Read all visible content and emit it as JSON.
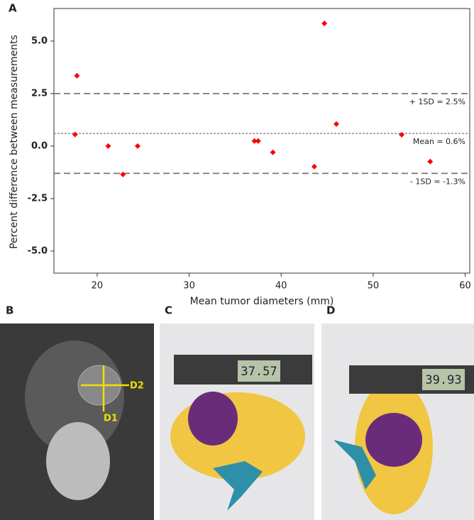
{
  "chart_data": {
    "type": "scatter",
    "panel_label": "A",
    "xlabel": "Mean tumor diameters (mm)",
    "ylabel": "Percent difference between measurements",
    "xlim": [
      15.3,
      60.5
    ],
    "ylim": [
      -6.05,
      6.55
    ],
    "xticks": [
      20,
      30,
      40,
      50,
      60
    ],
    "yticks": [
      {
        "value": 5.0,
        "label": "5.0"
      },
      2.5,
      {
        "value": 0.0,
        "label": "0.0"
      },
      -2.5,
      {
        "value": -5.0,
        "label": "-5.0"
      }
    ],
    "series": [
      {
        "color": "#ff0000",
        "x": [
          17.6,
          17.8,
          21.2,
          22.8,
          24.4,
          37.1,
          37.5,
          39.1,
          43.6,
          44.7,
          46.0,
          53.1,
          56.2
        ],
        "values": [
          0.55,
          3.35,
          0.0,
          -1.35,
          0.0,
          0.24,
          0.24,
          -0.3,
          -0.98,
          5.84,
          1.05,
          0.54,
          -0.74
        ]
      }
    ],
    "reference_lines": [
      {
        "value": 2.5,
        "label": "+ 1SD = 2.5%",
        "style": "dashed"
      },
      {
        "value": 0.6,
        "label": "Mean = 0.6%",
        "style": "dotted"
      },
      {
        "value": -1.3,
        "label": "- 1SD = -1.3%",
        "style": "dashed"
      }
    ]
  },
  "panels": {
    "b": {
      "label": "B",
      "d1": "D1",
      "d2": "D2"
    },
    "c": {
      "label": "C",
      "reading": "37.57"
    },
    "d": {
      "label": "D",
      "reading": "39.93"
    }
  }
}
